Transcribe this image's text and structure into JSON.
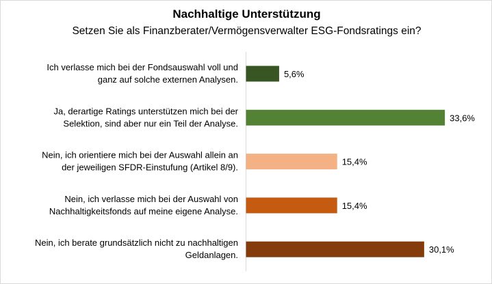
{
  "chart_data": {
    "type": "bar",
    "orientation": "horizontal",
    "title": "Nachhaltige Unterstützung",
    "subtitle": "Setzen Sie als Finanzberater/Vermögensverwalter ESG-Fondsratings ein?",
    "xlabel": "",
    "ylabel": "",
    "grid": false,
    "legend": "none",
    "xlim": [
      0,
      35
    ],
    "categories": [
      [
        "Ich verlasse mich bei der Fondsauswahl voll und",
        "ganz auf solche externen Analysen."
      ],
      [
        "Ja, derartige Ratings unterstützen mich bei der",
        "Selektion, sind aber nur ein Teil der Analyse."
      ],
      [
        "Nein, ich orientiere mich bei der Auswahl allein an",
        "der jeweiligen SFDR-Einstufung (Artikel 8/9)."
      ],
      [
        "Nein, ich verlasse mich bei der Auswahl von",
        "Nachhaltigkeitsfonds auf meine eigene Analyse."
      ],
      [
        "Nein, ich berate grundsätzlich nicht zu nachhaltigen",
        "Geldanlagen."
      ]
    ],
    "values": [
      5.6,
      33.6,
      15.4,
      15.4,
      30.1
    ],
    "value_labels": [
      "5,6%",
      "33,6%",
      "15,4%",
      "15,4%",
      "30,1%"
    ],
    "colors": [
      "#375623",
      "#548235",
      "#f4b183",
      "#c55a11",
      "#843c0c"
    ]
  }
}
